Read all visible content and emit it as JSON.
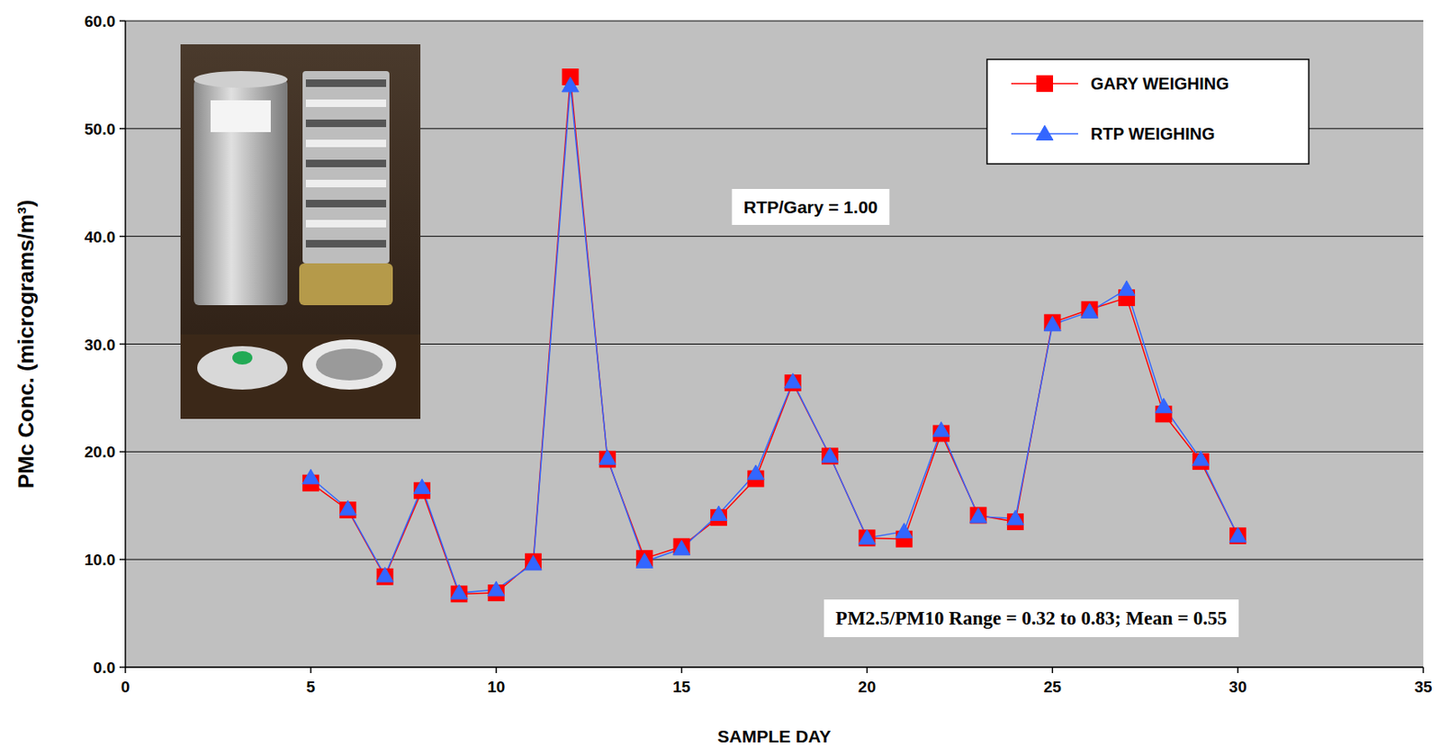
{
  "chart_data": {
    "type": "line",
    "x_label": "SAMPLE DAY",
    "y_label": "PMc Conc. (micrograms/m³)",
    "x": [
      5,
      6,
      7,
      8,
      9,
      10,
      11,
      12,
      13,
      14,
      15,
      16,
      17,
      18,
      19,
      20,
      21,
      22,
      23,
      24,
      25,
      26,
      27,
      28,
      29,
      30
    ],
    "series": [
      {
        "name": "GARY WEIGHING",
        "color": "#ff0000",
        "marker": "square",
        "values": [
          17.1,
          14.6,
          8.4,
          16.4,
          6.8,
          6.9,
          9.8,
          54.8,
          19.3,
          10.1,
          11.2,
          13.9,
          17.5,
          26.4,
          19.6,
          12.0,
          11.9,
          21.7,
          14.1,
          13.5,
          32.0,
          33.2,
          34.3,
          23.5,
          19.1,
          12.2
        ]
      },
      {
        "name": "RTP WEIGHING",
        "color": "#3366ff",
        "marker": "triangle",
        "values": [
          17.6,
          14.7,
          8.5,
          16.7,
          6.9,
          7.2,
          9.6,
          54.0,
          19.4,
          9.8,
          11.0,
          14.2,
          18.0,
          26.5,
          19.6,
          12.0,
          12.6,
          22.0,
          14.0,
          13.8,
          31.8,
          33.0,
          35.1,
          24.2,
          19.3,
          12.2
        ]
      }
    ],
    "xlim": [
      0,
      35
    ],
    "xticks": [
      0,
      5,
      10,
      15,
      20,
      25,
      30,
      35
    ],
    "ylim": [
      0,
      60
    ],
    "yticks": [
      {
        "value": 0,
        "label": "0.0"
      },
      {
        "value": 10,
        "label": "10.0"
      },
      {
        "value": 20,
        "label": "20.0"
      },
      {
        "value": 30,
        "label": "30.0"
      },
      {
        "value": 40,
        "label": "40.0"
      },
      {
        "value": 50,
        "label": "50.0"
      },
      {
        "value": 60,
        "label": "60.0"
      }
    ],
    "grid": true,
    "legend": "upper right",
    "annotations": [
      "RTP/Gary = 1.00",
      "PM2.5/PM10 Range = 0.32 to 0.83; Mean = 0.55"
    ]
  }
}
